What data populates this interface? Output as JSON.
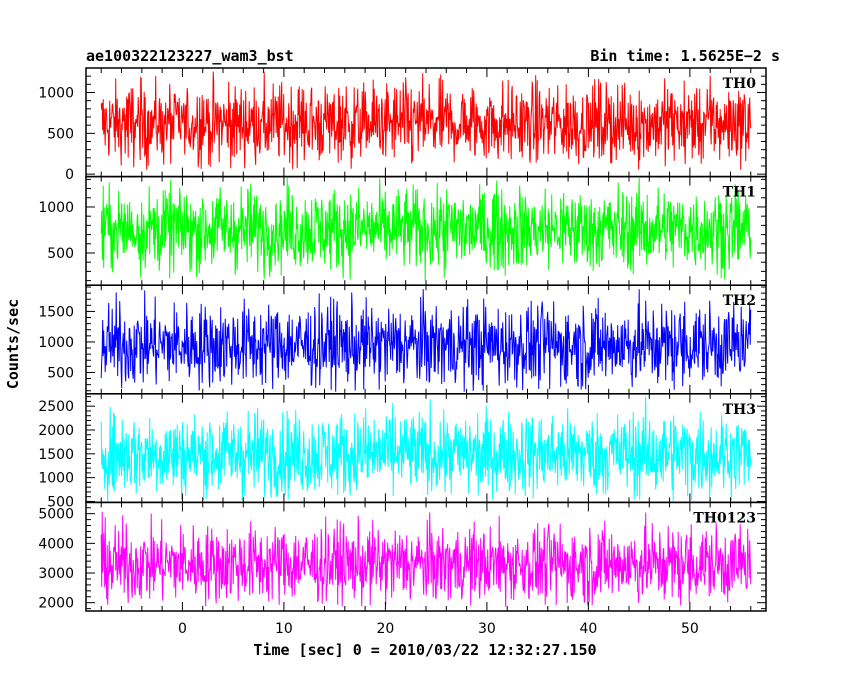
{
  "chart_data": {
    "type": "line",
    "title_left": "ae100322123227_wam3_bst",
    "title_right": "Bin time: 1.5625E−2 s",
    "xlabel": "Time [sec] 0 = 2010/03/22 12:32:27.150",
    "ylabel": "Counts/sec",
    "xlim": [
      -9.5,
      57.5
    ],
    "data_x_range": [
      -8.0,
      56.0
    ],
    "x_ticks": [
      0,
      10,
      20,
      30,
      40,
      50
    ],
    "x_tick_labels": [
      "0",
      "10",
      "20",
      "30",
      "40",
      "50"
    ],
    "grid": false,
    "panels": [
      {
        "name": "TH0",
        "color": "#ff0000",
        "ylim": [
          -30,
          1300
        ],
        "ticks": [
          0,
          500,
          1000
        ],
        "tick_labels": [
          "0",
          "500",
          "1000"
        ],
        "mean": 620,
        "low": 50,
        "high": 1300
      },
      {
        "name": "TH1",
        "color": "#00ff00",
        "ylim": [
          150,
          1330
        ],
        "ticks": [
          500,
          1000
        ],
        "tick_labels": [
          "500",
          "1000"
        ],
        "mean": 760,
        "low": 180,
        "high": 1330
      },
      {
        "name": "TH2",
        "color": "#0000ff",
        "ylim": [
          150,
          1930
        ],
        "ticks": [
          500,
          1000,
          1500
        ],
        "tick_labels": [
          "500",
          "1000",
          "1500"
        ],
        "mean": 950,
        "low": 170,
        "high": 1930
      },
      {
        "name": "TH3",
        "color": "#00ffff",
        "ylim": [
          480,
          2760
        ],
        "ticks": [
          500,
          1000,
          1500,
          2000,
          2500
        ],
        "tick_labels": [
          "500",
          "1000",
          "1500",
          "2000",
          "2500"
        ],
        "mean": 1500,
        "low": 500,
        "high": 2760
      },
      {
        "name": "TH0123",
        "color": "#ff00ff",
        "ylim": [
          1720,
          5380
        ],
        "ticks": [
          2000,
          3000,
          4000,
          5000
        ],
        "tick_labels": [
          "2000",
          "3000",
          "4000",
          "5000"
        ],
        "mean": 3300,
        "low": 1850,
        "high": 5200
      }
    ]
  }
}
